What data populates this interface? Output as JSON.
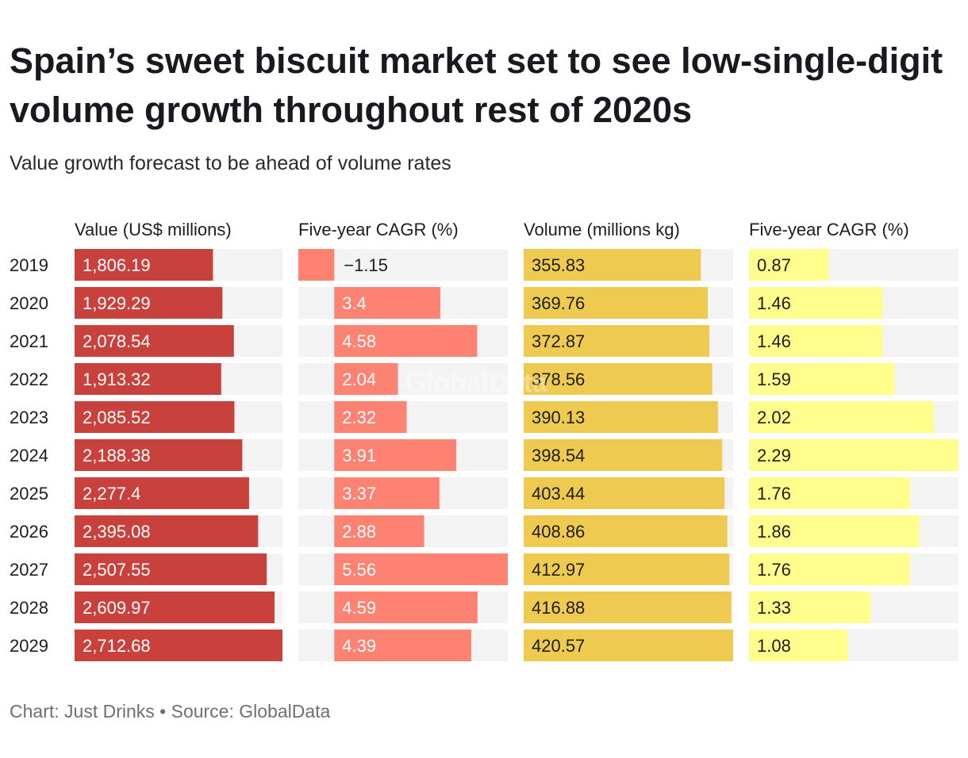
{
  "title": "Spain’s sweet biscuit market set to see low-single-digit volume growth throughout rest of 2020s",
  "subtitle": "Value growth forecast to be ahead of volume rates",
  "footer": "Chart: Just Drinks • Source: GlobalData",
  "watermark": "GlobalData",
  "chart_data": {
    "type": "bar",
    "orientation": "horizontal",
    "categories": [
      "2019",
      "2020",
      "2021",
      "2022",
      "2023",
      "2024",
      "2025",
      "2026",
      "2027",
      "2028",
      "2029"
    ],
    "series": [
      {
        "name": "Value (US$ millions)",
        "color": "#c8413c",
        "label_color": "#ffffff",
        "values": [
          1806.19,
          1929.29,
          2078.54,
          1913.32,
          2085.52,
          2188.38,
          2277.4,
          2395.08,
          2507.55,
          2609.97,
          2712.68
        ],
        "labels": [
          "1,806.19",
          "1,929.29",
          "2,078.54",
          "1,913.32",
          "2,085.52",
          "2,188.38",
          "2,277.4",
          "2,395.08",
          "2,507.55",
          "2,609.97",
          "2,712.68"
        ],
        "domain": [
          0,
          2712.68
        ]
      },
      {
        "name": "Five-year CAGR (%)",
        "color": "#fd8272",
        "label_color": "#ffffff",
        "values": [
          -1.15,
          3.4,
          4.58,
          2.04,
          2.32,
          3.91,
          3.37,
          2.88,
          5.56,
          4.59,
          4.39
        ],
        "labels": [
          "−1.15",
          "3.4",
          "4.58",
          "2.04",
          "2.32",
          "3.91",
          "3.37",
          "2.88",
          "5.56",
          "4.59",
          "4.39"
        ],
        "domain": [
          -1.15,
          5.56
        ]
      },
      {
        "name": "Volume (millions kg)",
        "color": "#efca51",
        "label_color": "#1d1d1d",
        "values": [
          355.83,
          369.76,
          372.87,
          378.56,
          390.13,
          398.54,
          403.44,
          408.86,
          412.97,
          416.88,
          420.57
        ],
        "labels": [
          "355.83",
          "369.76",
          "372.87",
          "378.56",
          "390.13",
          "398.54",
          "403.44",
          "408.86",
          "412.97",
          "416.88",
          "420.57"
        ],
        "domain": [
          0,
          420.57
        ]
      },
      {
        "name": "Five-year CAGR (%)",
        "color": "#fffe8c",
        "label_color": "#1d1d1d",
        "values": [
          0.87,
          1.46,
          1.46,
          1.59,
          2.02,
          2.29,
          1.76,
          1.86,
          1.76,
          1.33,
          1.08
        ],
        "labels": [
          "0.87",
          "1.46",
          "1.46",
          "1.59",
          "2.02",
          "2.29",
          "1.76",
          "1.86",
          "1.76",
          "1.33",
          "1.08"
        ],
        "domain": [
          0,
          2.29
        ]
      }
    ],
    "track_color": "#f3f3f3"
  }
}
